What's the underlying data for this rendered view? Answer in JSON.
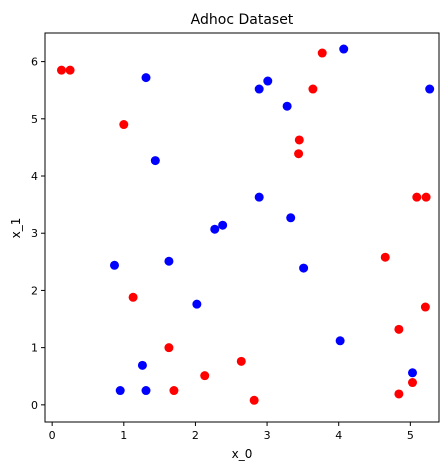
{
  "chart_data": {
    "type": "scatter",
    "title": "Adhoc Dataset",
    "xlabel": "x_0",
    "ylabel": "x_1",
    "xlim": [
      -0.1,
      5.4
    ],
    "ylim": [
      -0.3,
      6.5
    ],
    "xticks": [
      0,
      1,
      2,
      3,
      4,
      5
    ],
    "yticks": [
      0,
      1,
      2,
      3,
      4,
      5,
      6
    ],
    "grid": false,
    "series": [
      {
        "color": "#ff0000",
        "points": [
          [
            0.13,
            5.85
          ],
          [
            0.25,
            5.85
          ],
          [
            1.0,
            4.9
          ],
          [
            3.77,
            6.15
          ],
          [
            3.64,
            5.52
          ],
          [
            3.45,
            4.63
          ],
          [
            3.44,
            4.39
          ],
          [
            5.09,
            3.63
          ],
          [
            5.22,
            3.63
          ],
          [
            4.65,
            2.58
          ],
          [
            1.13,
            1.88
          ],
          [
            5.21,
            1.71
          ],
          [
            4.84,
            1.32
          ],
          [
            1.63,
            1.0
          ],
          [
            2.64,
            0.76
          ],
          [
            2.13,
            0.51
          ],
          [
            1.7,
            0.25
          ],
          [
            5.03,
            0.39
          ],
          [
            4.84,
            0.19
          ],
          [
            2.82,
            0.08
          ]
        ]
      },
      {
        "color": "#0000ff",
        "points": [
          [
            1.31,
            5.72
          ],
          [
            4.07,
            6.22
          ],
          [
            3.01,
            5.66
          ],
          [
            2.89,
            5.52
          ],
          [
            5.27,
            5.52
          ],
          [
            3.28,
            5.22
          ],
          [
            1.44,
            4.27
          ],
          [
            2.89,
            3.63
          ],
          [
            3.33,
            3.27
          ],
          [
            2.38,
            3.14
          ],
          [
            2.27,
            3.07
          ],
          [
            0.87,
            2.44
          ],
          [
            1.63,
            2.51
          ],
          [
            3.51,
            2.39
          ],
          [
            2.02,
            1.76
          ],
          [
            4.02,
            1.12
          ],
          [
            1.26,
            0.69
          ],
          [
            5.03,
            0.56
          ],
          [
            0.95,
            0.25
          ],
          [
            1.31,
            0.25
          ]
        ]
      }
    ]
  }
}
